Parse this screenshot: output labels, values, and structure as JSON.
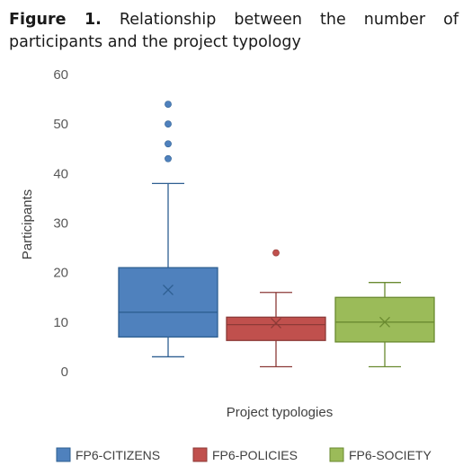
{
  "caption": {
    "label": "Figure 1.",
    "text": "Relationship between the number of participants and the project typology"
  },
  "chart_data": {
    "type": "box",
    "xlabel": "Project typologies",
    "ylabel": "Participants",
    "ylim": [
      0,
      60
    ],
    "yticks": [
      0,
      10,
      20,
      30,
      40,
      50,
      60
    ],
    "grid": false,
    "legend_position": "bottom",
    "series": [
      {
        "name": "FP6-CITIZENS",
        "color": "#4f81bd",
        "stroke": "#2e5f91",
        "min": 3,
        "q1": 7,
        "median": 12,
        "q3": 21,
        "max": 38,
        "mean": 16.5,
        "outliers": [
          43,
          46,
          50,
          54
        ]
      },
      {
        "name": "FP6-POLICIES",
        "color": "#c0504d",
        "stroke": "#8c3a37",
        "min": 1,
        "q1": 6.3,
        "median": 9.5,
        "q3": 11,
        "max": 16,
        "mean": 9.8,
        "outliers": [
          24
        ]
      },
      {
        "name": "FP6-SOCIETY",
        "color": "#9bbb59",
        "stroke": "#6a8a30",
        "min": 1,
        "q1": 6,
        "median": 10,
        "q3": 15,
        "max": 18,
        "mean": 10,
        "outliers": []
      }
    ]
  }
}
